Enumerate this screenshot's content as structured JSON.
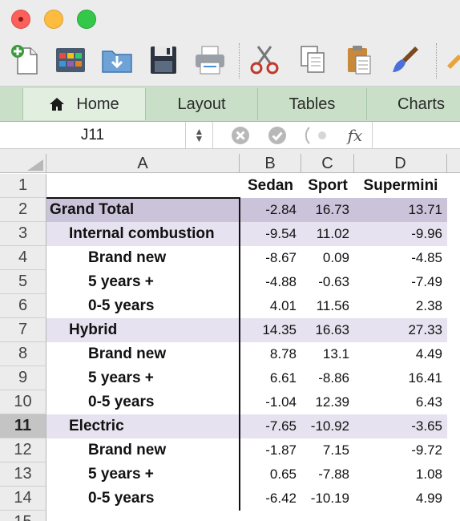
{
  "toolbar": {
    "icons": [
      "new-document-icon",
      "gallery-icon",
      "open-folder-icon",
      "save-icon",
      "print-icon",
      "cut-icon",
      "copy-icon",
      "paste-icon",
      "format-brush-icon",
      "more-icon"
    ]
  },
  "ribbon": {
    "tabs": [
      {
        "label": "Home",
        "selected": true
      },
      {
        "label": "Layout",
        "selected": false
      },
      {
        "label": "Tables",
        "selected": false
      },
      {
        "label": "Charts",
        "selected": false
      }
    ]
  },
  "formula_bar": {
    "name_box": "J11",
    "fx": "fx",
    "formula": ""
  },
  "grid": {
    "columns": [
      "A",
      "B",
      "C",
      "D"
    ],
    "header_row": {
      "row": "1",
      "b": "Sedan",
      "c": "Sport",
      "d": "Supermini"
    },
    "rows": [
      {
        "row": "2",
        "label": "Grand Total",
        "b": "-2.84",
        "c": "16.73",
        "d": "13.71"
      },
      {
        "row": "3",
        "label": "Internal combustion",
        "b": "-9.54",
        "c": "11.02",
        "d": "-9.96"
      },
      {
        "row": "4",
        "label": "Brand new",
        "b": "-8.67",
        "c": "0.09",
        "d": "-4.85"
      },
      {
        "row": "5",
        "label": "5 years +",
        "b": "-4.88",
        "c": "-0.63",
        "d": "-7.49"
      },
      {
        "row": "6",
        "label": "0-5 years",
        "b": "4.01",
        "c": "11.56",
        "d": "2.38"
      },
      {
        "row": "7",
        "label": "Hybrid",
        "b": "14.35",
        "c": "16.63",
        "d": "27.33"
      },
      {
        "row": "8",
        "label": "Brand new",
        "b": "8.78",
        "c": "13.1",
        "d": "4.49"
      },
      {
        "row": "9",
        "label": "5 years +",
        "b": "6.61",
        "c": "-8.86",
        "d": "16.41"
      },
      {
        "row": "10",
        "label": "0-5 years",
        "b": "-1.04",
        "c": "12.39",
        "d": "6.43"
      },
      {
        "row": "11",
        "label": "Electric",
        "b": "-7.65",
        "c": "-10.92",
        "d": "-3.65"
      },
      {
        "row": "12",
        "label": "Brand new",
        "b": "-1.87",
        "c": "7.15",
        "d": "-9.72"
      },
      {
        "row": "13",
        "label": "5 years +",
        "b": "0.65",
        "c": "-7.88",
        "d": "1.08"
      },
      {
        "row": "14",
        "label": "0-5 years",
        "b": "-6.42",
        "c": "-10.19",
        "d": "4.99"
      },
      {
        "row": "15",
        "label": "",
        "b": "",
        "c": "",
        "d": ""
      }
    ],
    "active_row": "11",
    "colors": {
      "total_fill": "#cbc3da",
      "group_fill": "#e6e2ef",
      "ribbon": "#c9dfc7"
    }
  }
}
